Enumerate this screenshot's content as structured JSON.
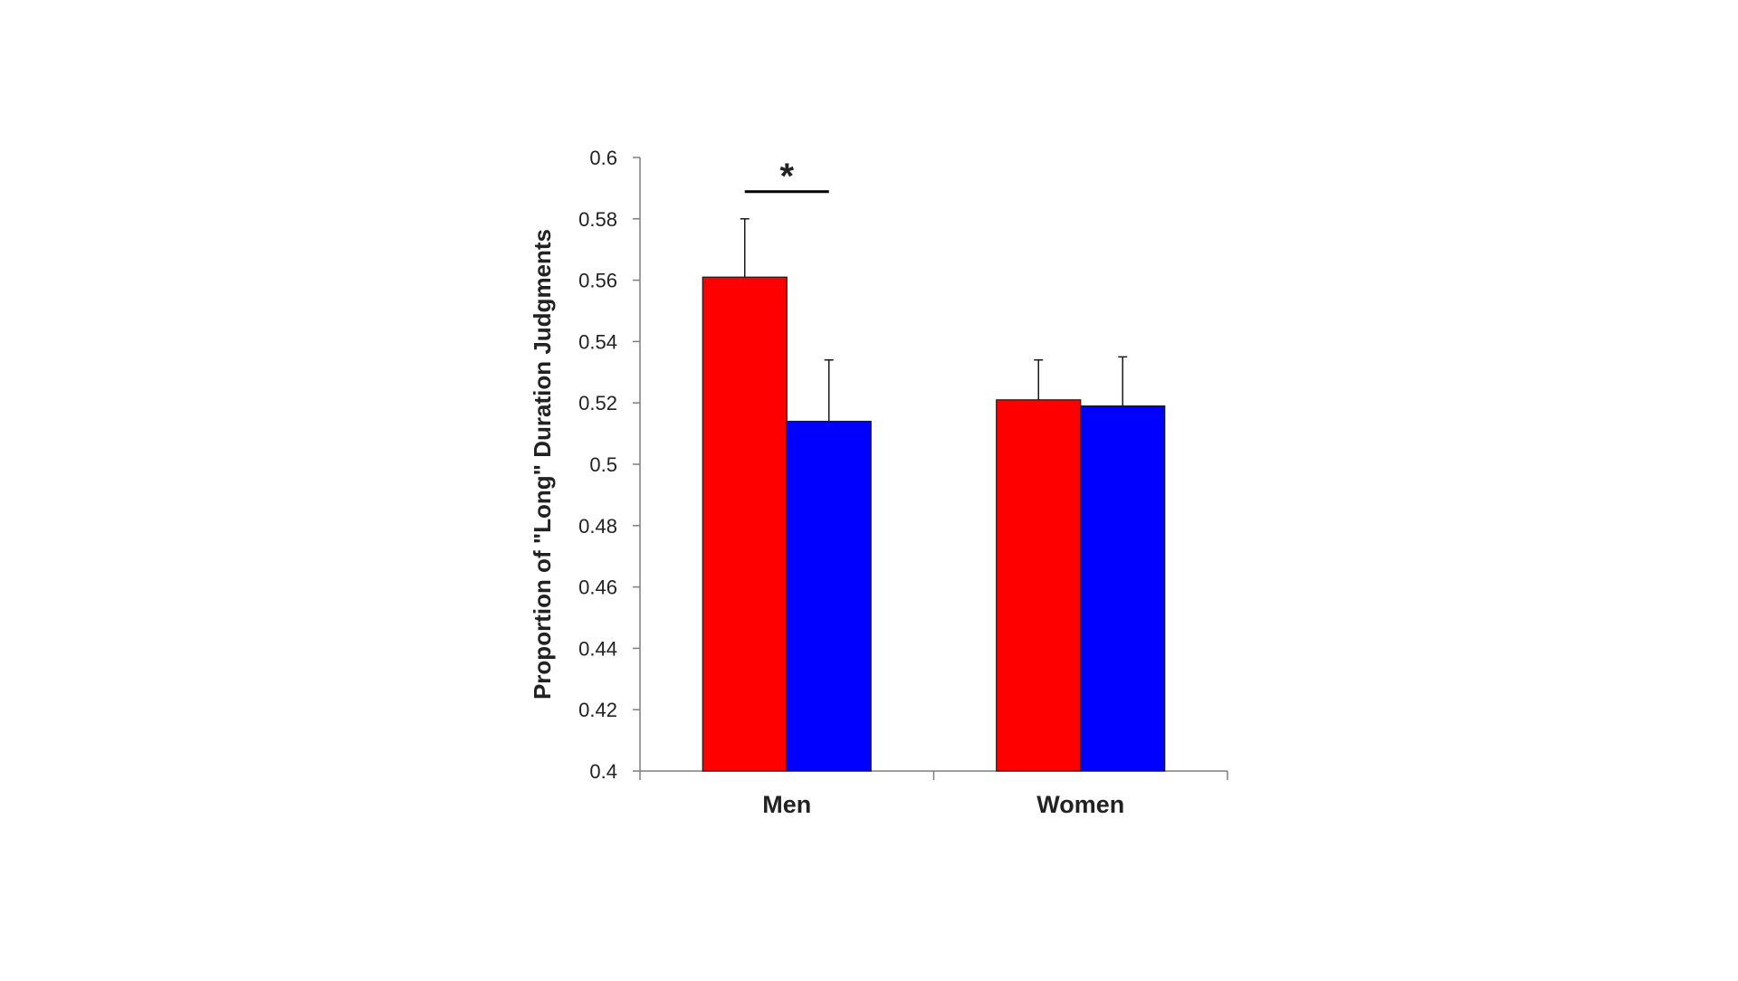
{
  "chart_data": {
    "type": "bar",
    "title": "",
    "xlabel": "",
    "ylabel": "Proportion of \"Long\" Duration Judgments",
    "ylim": [
      0.4,
      0.6
    ],
    "yticks": [
      "0.4",
      "0.42",
      "0.44",
      "0.46",
      "0.48",
      "0.5",
      "0.52",
      "0.54",
      "0.56",
      "0.58",
      "0.6"
    ],
    "categories": [
      "Men",
      "Women"
    ],
    "series": [
      {
        "values": [
          0.561,
          0.521
        ],
        "errors": [
          0.019,
          0.013
        ],
        "color": "#ff0000"
      },
      {
        "values": [
          0.514,
          0.519
        ],
        "errors": [
          0.02,
          0.016
        ],
        "color": "#0000ff"
      }
    ],
    "annotations": [
      {
        "text": "*",
        "category": "Men",
        "between_series": [
          0,
          1
        ]
      }
    ],
    "grid": false,
    "legend": "none"
  }
}
